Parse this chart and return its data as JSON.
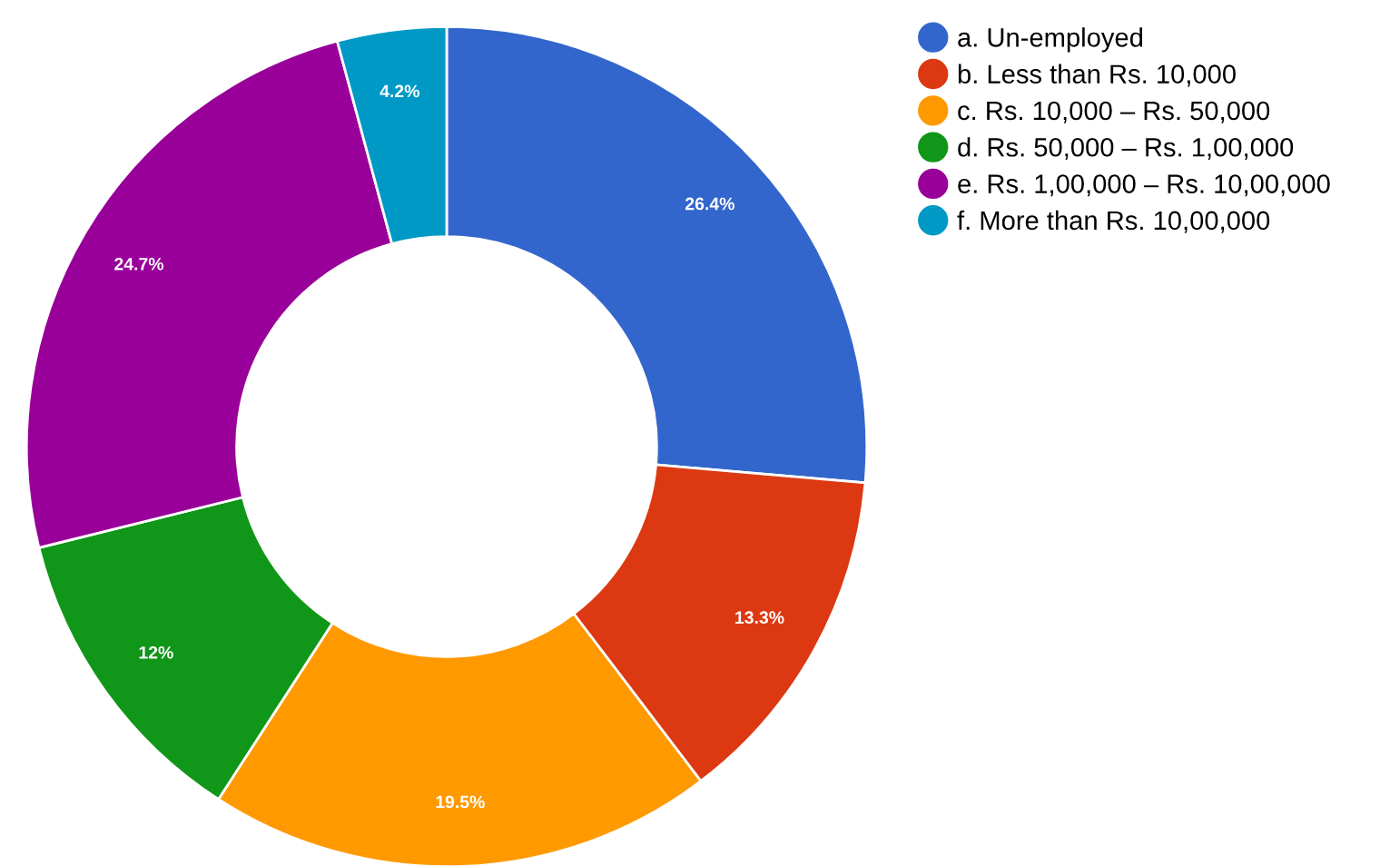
{
  "chart_data": {
    "type": "donut",
    "categories": [
      "a. Un-employed",
      "b. Less than Rs. 10,000",
      "c. Rs. 10,000 – Rs. 50,000",
      "d. Rs. 50,000 – Rs. 1,00,000",
      "e. Rs. 1,00,000 – Rs. 10,00,000",
      "f. More than Rs. 10,00,000"
    ],
    "values": [
      26.4,
      13.3,
      19.5,
      12,
      24.7,
      4.2
    ],
    "value_labels": [
      "26.4%",
      "13.3%",
      "19.5%",
      "12%",
      "24.7%",
      "4.2%"
    ],
    "colors": [
      "#3366cc",
      "#dc3912",
      "#ff9900",
      "#109618",
      "#990099",
      "#0099c6"
    ],
    "legend": "top right"
  }
}
